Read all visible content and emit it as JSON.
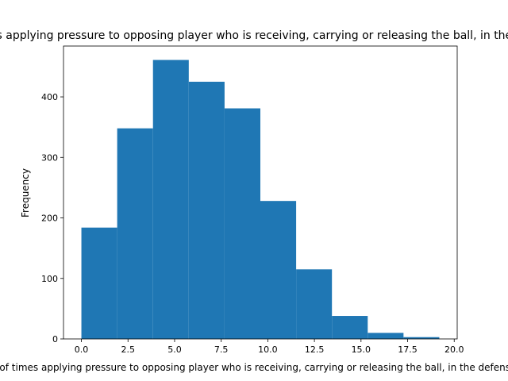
{
  "chart_data": {
    "type": "bar",
    "title": "Number of times applying pressure to opposing player who is receiving, carrying or releasing the ball, in the defensive third",
    "xlabel": "Number of times applying pressure to opposing player who is receiving, carrying or releasing the ball, in the defensive third",
    "ylabel": "Frequency",
    "bin_edges": [
      0.0,
      1.92,
      3.84,
      5.76,
      7.68,
      9.6,
      11.52,
      13.44,
      15.36,
      17.28,
      19.2
    ],
    "values": [
      184,
      348,
      461,
      425,
      381,
      228,
      115,
      38,
      10,
      3
    ],
    "xlim": [
      -0.96,
      20.16
    ],
    "ylim": [
      0,
      484
    ],
    "xticks": [
      0.0,
      2.5,
      5.0,
      7.5,
      10.0,
      12.5,
      15.0,
      17.5,
      20.0
    ],
    "xtick_labels": [
      "0.0",
      "2.5",
      "5.0",
      "7.5",
      "10.0",
      "12.5",
      "15.0",
      "17.5",
      "20.0"
    ],
    "yticks": [
      0,
      100,
      200,
      300,
      400
    ],
    "ytick_labels": [
      "0",
      "100",
      "200",
      "300",
      "400"
    ],
    "bar_color": "#1f77b4",
    "grid": false,
    "legend": "none"
  }
}
